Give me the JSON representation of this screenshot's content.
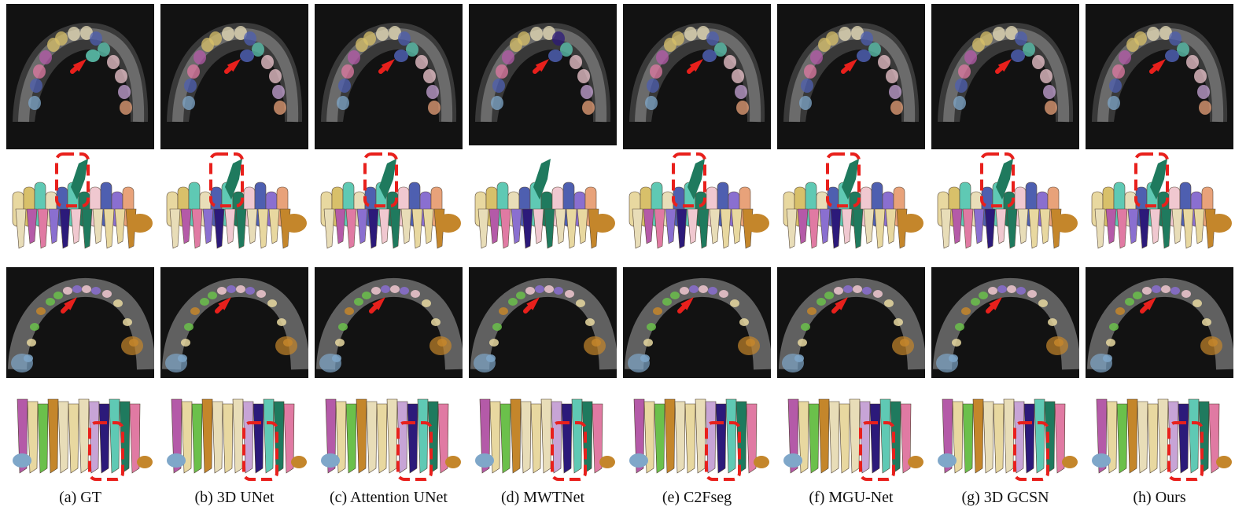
{
  "captions": [
    "(a) GT",
    "(b) 3D UNet",
    "(c) Attention UNet",
    "(d) MWTNet",
    "(e) C2Fseg",
    "(f) MGU-Net",
    "(g) 3D GCSN",
    "(h) Ours"
  ],
  "colors": {
    "arrow": "#e8201c",
    "highlight_box": "#e8201c",
    "ct_background": "#121212",
    "bone": "#8e8e8e",
    "tooth_palette": [
      "#e8ddb8",
      "#5fc9b4",
      "#7fa7c9",
      "#d8c06a",
      "#b45aa8",
      "#e07aa3",
      "#4e5fb0",
      "#8a6fd0",
      "#c7a4d6",
      "#e8a27a",
      "#1f7a5e",
      "#2c1a7a",
      "#f0c8d0",
      "#6bc04b",
      "#c4862b",
      "#e8d8a0"
    ]
  }
}
